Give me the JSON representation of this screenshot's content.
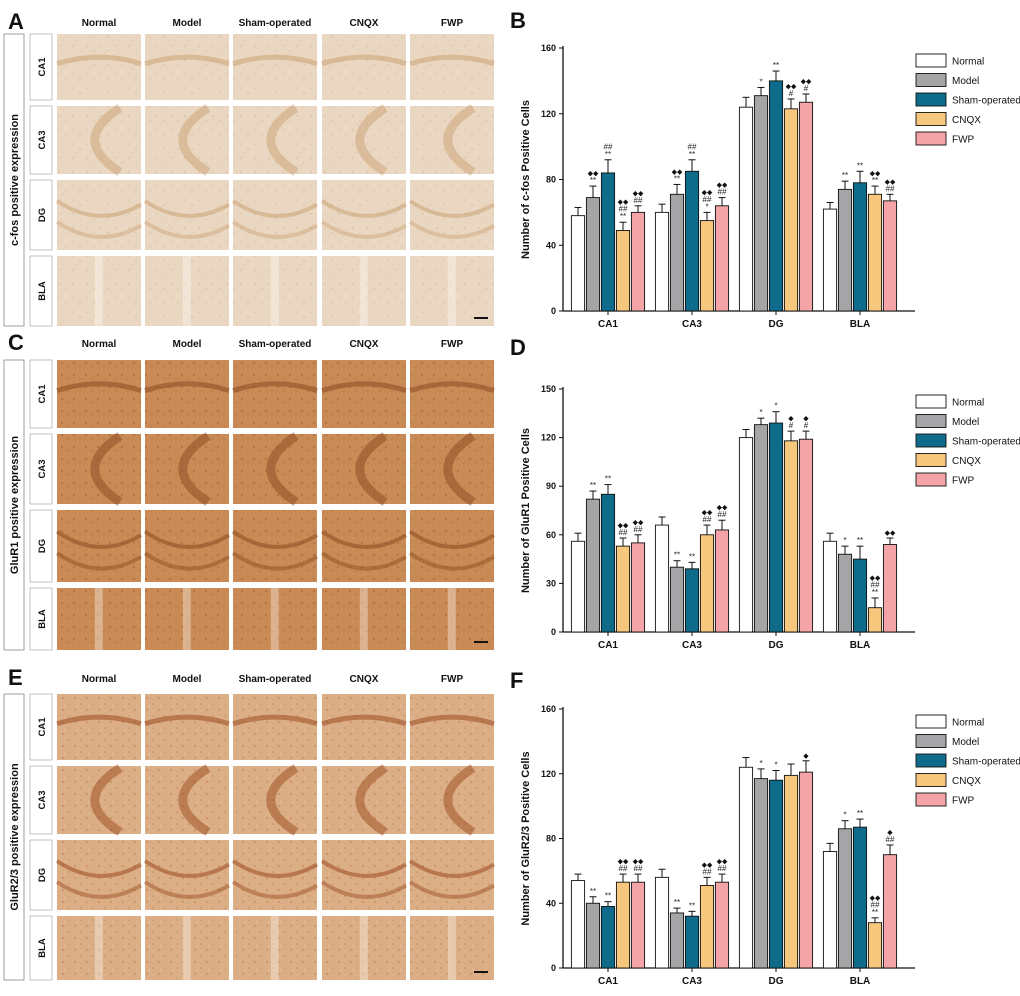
{
  "panels": [
    "A",
    "B",
    "C",
    "D",
    "E",
    "F"
  ],
  "groups": [
    "Normal",
    "Model",
    "Sham-operated",
    "CNQX",
    "FWP"
  ],
  "regions": [
    "CA1",
    "CA3",
    "DG",
    "BLA"
  ],
  "micrograph_panels": [
    {
      "label": "A",
      "side_title": "c-fos positive expression",
      "tint": "soft"
    },
    {
      "label": "C",
      "side_title": "GluR1 positive expression",
      "tint": "brown"
    },
    {
      "label": "E",
      "side_title": "GluR2/3 positive expression",
      "tint": "medium"
    }
  ],
  "colors": {
    "Normal": "#ffffff",
    "Model": "#a5a5a7",
    "Sham-operated": "#0f6b8a",
    "CNQX": "#f7c77e",
    "FWP": "#f4a4a6",
    "outline": "#111111"
  },
  "chart_data": [
    {
      "panel": "B",
      "type": "bar",
      "categories": [
        "CA1",
        "CA3",
        "DG",
        "BLA"
      ],
      "ylabel": "Number of c-fos Positive Cells",
      "ylim": [
        0,
        160
      ],
      "yticks": [
        "0",
        "40",
        "80",
        "120",
        "160"
      ],
      "series": [
        {
          "name": "Normal",
          "values": [
            58,
            60,
            124,
            62
          ],
          "errors": [
            5,
            5,
            6,
            4
          ],
          "annotations": [
            "",
            "",
            "",
            ""
          ]
        },
        {
          "name": "Model",
          "values": [
            69,
            71,
            131,
            74
          ],
          "errors": [
            7,
            6,
            5,
            5
          ],
          "annotations": [
            "◆◆\n**",
            "◆◆\n**",
            "*",
            "**"
          ]
        },
        {
          "name": "Sham-operated",
          "values": [
            84,
            85,
            140,
            78
          ],
          "errors": [
            8,
            7,
            6,
            7
          ],
          "annotations": [
            "##\n**",
            "##\n**",
            "**",
            "**"
          ]
        },
        {
          "name": "CNQX",
          "values": [
            49,
            55,
            123,
            71
          ],
          "errors": [
            5,
            5,
            6,
            5
          ],
          "annotations": [
            "◆◆\n##\n**",
            "◆◆\n##\n*",
            "◆◆\n#",
            "◆◆\n**"
          ]
        },
        {
          "name": "FWP",
          "values": [
            60,
            64,
            127,
            67
          ],
          "errors": [
            4,
            5,
            5,
            4
          ],
          "annotations": [
            "◆◆\n##",
            "◆◆\n##",
            "◆◆\n#",
            "◆◆\n##"
          ]
        }
      ]
    },
    {
      "panel": "D",
      "type": "bar",
      "categories": [
        "CA1",
        "CA3",
        "DG",
        "BLA"
      ],
      "ylabel": "Number of GluR1 Positive Cells",
      "ylim": [
        0,
        150
      ],
      "yticks": [
        "0",
        "30",
        "60",
        "90",
        "120",
        "150"
      ],
      "series": [
        {
          "name": "Normal",
          "values": [
            56,
            66,
            120,
            56
          ],
          "errors": [
            5,
            5,
            5,
            5
          ],
          "annotations": [
            "",
            "",
            "",
            ""
          ]
        },
        {
          "name": "Model",
          "values": [
            82,
            40,
            128,
            48
          ],
          "errors": [
            5,
            4,
            4,
            5
          ],
          "annotations": [
            "**",
            "**",
            "*",
            "*"
          ]
        },
        {
          "name": "Sham-operated",
          "values": [
            85,
            39,
            129,
            45
          ],
          "errors": [
            6,
            4,
            7,
            8
          ],
          "annotations": [
            "**",
            "**",
            "*",
            "**"
          ]
        },
        {
          "name": "CNQX",
          "values": [
            53,
            60,
            118,
            15
          ],
          "errors": [
            5,
            6,
            6,
            6
          ],
          "annotations": [
            "◆◆\n##",
            "◆◆\n##",
            "◆\n#",
            "◆◆\n##\n**"
          ]
        },
        {
          "name": "FWP",
          "values": [
            55,
            63,
            119,
            54
          ],
          "errors": [
            5,
            6,
            5,
            4
          ],
          "annotations": [
            "◆◆\n##",
            "◆◆\n##",
            "◆\n#",
            "◆◆"
          ]
        }
      ]
    },
    {
      "panel": "F",
      "type": "bar",
      "categories": [
        "CA1",
        "CA3",
        "DG",
        "BLA"
      ],
      "ylabel": "Number of GluR2/3 Positive Cells",
      "ylim": [
        0,
        160
      ],
      "yticks": [
        "0",
        "40",
        "80",
        "120",
        "160"
      ],
      "series": [
        {
          "name": "Normal",
          "values": [
            54,
            56,
            124,
            72
          ],
          "errors": [
            4,
            5,
            6,
            5
          ],
          "annotations": [
            "",
            "",
            "",
            ""
          ]
        },
        {
          "name": "Model",
          "values": [
            40,
            34,
            117,
            86
          ],
          "errors": [
            4,
            3,
            6,
            5
          ],
          "annotations": [
            "**",
            "**",
            "*",
            "*"
          ]
        },
        {
          "name": "Sham-operated",
          "values": [
            38,
            32,
            116,
            87
          ],
          "errors": [
            3,
            3,
            6,
            5
          ],
          "annotations": [
            "**",
            "**",
            "*",
            "**"
          ]
        },
        {
          "name": "CNQX",
          "values": [
            53,
            51,
            119,
            28
          ],
          "errors": [
            5,
            5,
            7,
            3
          ],
          "annotations": [
            "◆◆\n##",
            "◆◆\n##",
            "",
            "◆◆\n##\n**"
          ]
        },
        {
          "name": "FWP",
          "values": [
            53,
            53,
            121,
            70
          ],
          "errors": [
            5,
            5,
            7,
            6
          ],
          "annotations": [
            "◆◆\n##",
            "◆◆\n##",
            "◆",
            "◆\n##"
          ]
        }
      ]
    }
  ]
}
